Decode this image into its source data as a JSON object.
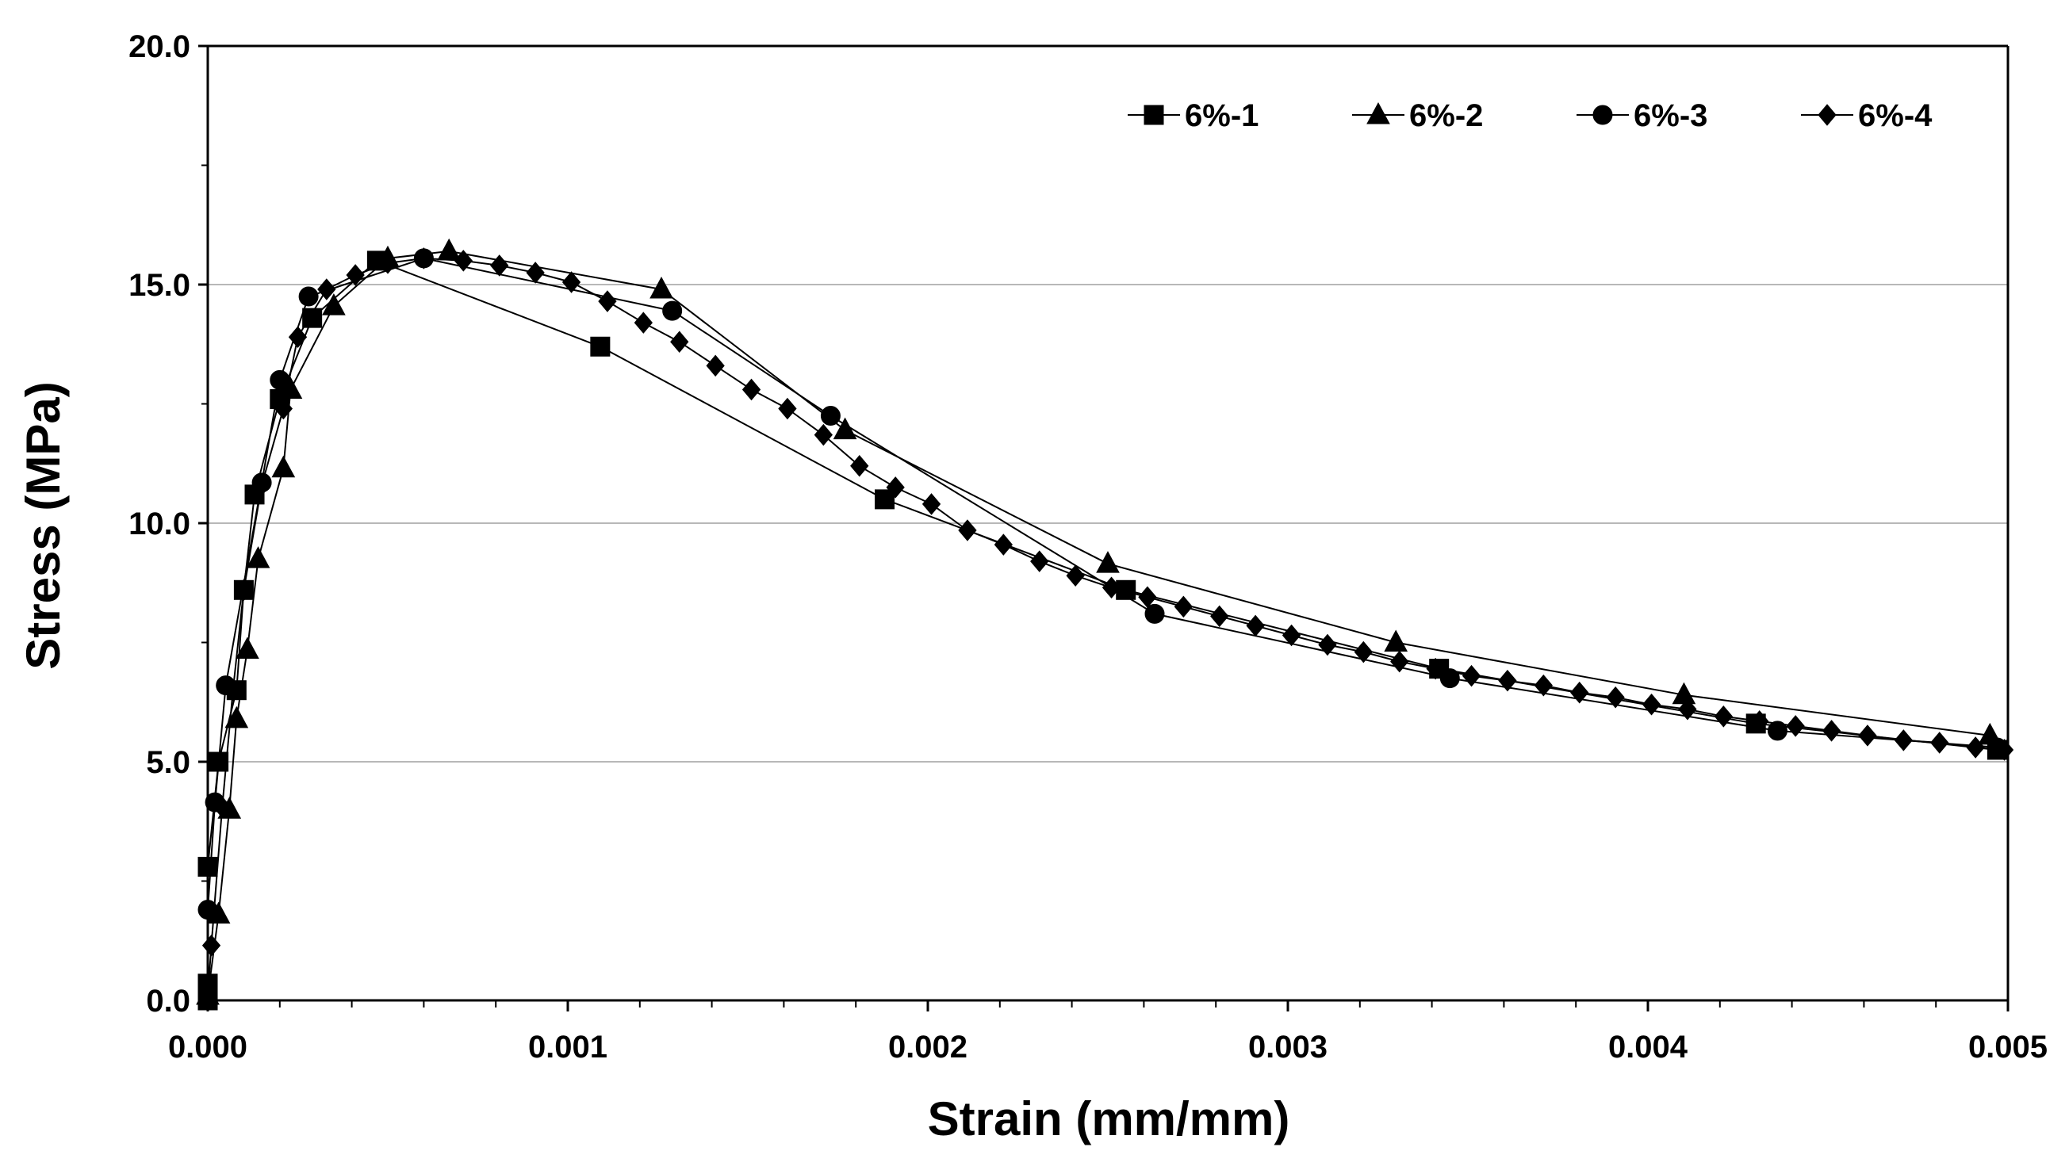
{
  "chart_data": {
    "type": "line",
    "title": "",
    "xlabel": "Strain (mm/mm)",
    "ylabel": "Stress (MPa)",
    "xlim": [
      0,
      0.005
    ],
    "ylim": [
      0,
      20
    ],
    "x_ticks": [
      0,
      0.001,
      0.002,
      0.003,
      0.004,
      0.005
    ],
    "x_tick_labels": [
      "0.000",
      "0.001",
      "0.002",
      "0.003",
      "0.004",
      "0.005"
    ],
    "y_ticks": [
      0,
      5,
      10,
      15,
      20
    ],
    "y_tick_labels": [
      "0.0",
      "5.0",
      "10.0",
      "15.0",
      "20.0"
    ],
    "grid": "horizontal",
    "legend_position": "top-right",
    "series": [
      {
        "name": "6%-1",
        "marker": "square",
        "points": [
          [
            0.0,
            0.0
          ],
          [
            0.0,
            0.35
          ],
          [
            0.0,
            2.8
          ],
          [
            3e-05,
            5.0
          ],
          [
            8e-05,
            6.5
          ],
          [
            0.0001,
            8.6
          ],
          [
            0.00013,
            10.6
          ],
          [
            0.0002,
            12.6
          ],
          [
            0.00029,
            14.3
          ],
          [
            0.00047,
            15.5
          ],
          [
            0.00109,
            13.7
          ],
          [
            0.00188,
            10.5
          ],
          [
            0.00255,
            8.6
          ],
          [
            0.00342,
            6.95
          ],
          [
            0.0043,
            5.8
          ],
          [
            0.00497,
            5.25
          ]
        ]
      },
      {
        "name": "6%-2",
        "marker": "triangle",
        "points": [
          [
            0.0,
            0.1
          ],
          [
            3e-05,
            1.8
          ],
          [
            6e-05,
            4.0
          ],
          [
            8e-05,
            5.9
          ],
          [
            0.00011,
            7.35
          ],
          [
            0.00014,
            9.25
          ],
          [
            0.00021,
            11.15
          ],
          [
            0.00023,
            12.8
          ],
          [
            0.00035,
            14.55
          ],
          [
            0.0005,
            15.55
          ],
          [
            0.00067,
            15.7
          ],
          [
            0.00126,
            14.9
          ],
          [
            0.00177,
            11.95
          ],
          [
            0.0025,
            9.15
          ],
          [
            0.0033,
            7.5
          ],
          [
            0.0041,
            6.4
          ],
          [
            0.00495,
            5.55
          ]
        ]
      },
      {
        "name": "6%-3",
        "marker": "circle",
        "points": [
          [
            0.0,
            0.05
          ],
          [
            0.0,
            1.9
          ],
          [
            2e-05,
            4.15
          ],
          [
            5e-05,
            6.6
          ],
          [
            0.00015,
            10.85
          ],
          [
            0.0002,
            13.0
          ],
          [
            0.00028,
            14.75
          ],
          [
            0.0006,
            15.55
          ],
          [
            0.00129,
            14.45
          ],
          [
            0.00173,
            12.25
          ],
          [
            0.00263,
            8.1
          ],
          [
            0.00345,
            6.75
          ],
          [
            0.00436,
            5.65
          ],
          [
            0.00497,
            5.3
          ]
        ]
      },
      {
        "name": "6%-4",
        "marker": "diamond",
        "points": [
          [
            0.0,
            0.1
          ],
          [
            1e-05,
            1.15
          ],
          [
            4e-05,
            4.05
          ],
          [
            7e-05,
            6.5
          ],
          [
            0.0001,
            8.6
          ],
          [
            0.00015,
            10.8
          ],
          [
            0.00021,
            12.4
          ],
          [
            0.00025,
            13.9
          ],
          [
            0.00033,
            14.9
          ],
          [
            0.00041,
            15.2
          ],
          [
            0.0005,
            15.45
          ],
          [
            0.0006,
            15.55
          ],
          [
            0.00071,
            15.5
          ],
          [
            0.00081,
            15.4
          ],
          [
            0.00091,
            15.25
          ],
          [
            0.00101,
            15.05
          ],
          [
            0.00111,
            14.65
          ],
          [
            0.00121,
            14.2
          ],
          [
            0.00131,
            13.8
          ],
          [
            0.00141,
            13.3
          ],
          [
            0.00151,
            12.8
          ],
          [
            0.00161,
            12.4
          ],
          [
            0.00171,
            11.85
          ],
          [
            0.00181,
            11.2
          ],
          [
            0.00191,
            10.75
          ],
          [
            0.00201,
            10.4
          ],
          [
            0.00211,
            9.85
          ],
          [
            0.00221,
            9.55
          ],
          [
            0.00231,
            9.2
          ],
          [
            0.00241,
            8.9
          ],
          [
            0.00251,
            8.65
          ],
          [
            0.00261,
            8.45
          ],
          [
            0.00271,
            8.25
          ],
          [
            0.00281,
            8.05
          ],
          [
            0.00291,
            7.85
          ],
          [
            0.00301,
            7.65
          ],
          [
            0.00311,
            7.45
          ],
          [
            0.00321,
            7.3
          ],
          [
            0.00331,
            7.1
          ],
          [
            0.00341,
            6.95
          ],
          [
            0.00351,
            6.8
          ],
          [
            0.00361,
            6.7
          ],
          [
            0.00371,
            6.6
          ],
          [
            0.00381,
            6.45
          ],
          [
            0.00391,
            6.35
          ],
          [
            0.00401,
            6.2
          ],
          [
            0.00411,
            6.1
          ],
          [
            0.00421,
            5.95
          ],
          [
            0.00431,
            5.85
          ],
          [
            0.00441,
            5.75
          ],
          [
            0.00451,
            5.65
          ],
          [
            0.00461,
            5.55
          ],
          [
            0.00471,
            5.45
          ],
          [
            0.00481,
            5.4
          ],
          [
            0.00491,
            5.3
          ],
          [
            0.00499,
            5.25
          ]
        ]
      }
    ]
  }
}
